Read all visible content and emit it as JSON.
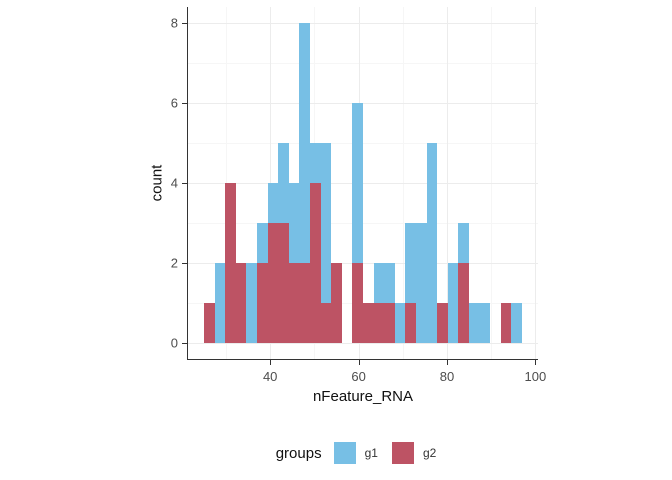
{
  "chart_data": {
    "type": "histogram",
    "title": "",
    "xlabel": "nFeature_RNA",
    "ylabel": "count",
    "bin_start": 25,
    "binwidth": 2.4,
    "n_bins": 30,
    "x_domain": [
      21.4,
      100.6
    ],
    "y_domain": [
      -0.4,
      8.4
    ],
    "x_major_ticks": [
      40,
      60,
      80,
      100
    ],
    "x_minor_gridlines": [
      30,
      50,
      70,
      90
    ],
    "y_major_ticks": [
      0,
      2,
      4,
      6,
      8
    ],
    "y_minor_gridlines": [
      1,
      3,
      5,
      7
    ],
    "grid": true,
    "colors": {
      "g1": "#77BFE5",
      "g2": "#BD5364",
      "axis": "#333333",
      "tick_text": "#4d4d4d",
      "grid_major": "#ececec",
      "grid_minor": "#f6f6f6"
    },
    "series": [
      {
        "name": "g1",
        "color": "#77BFE5",
        "counts": [
          0,
          2,
          0,
          0,
          2,
          3,
          4,
          5,
          4,
          8,
          5,
          5,
          0,
          0,
          6,
          0,
          2,
          2,
          1,
          3,
          3,
          5,
          0,
          2,
          3,
          1,
          1,
          0,
          0,
          1
        ]
      },
      {
        "name": "g2",
        "color": "#BD5364",
        "counts": [
          1,
          0,
          4,
          2,
          0,
          2,
          3,
          3,
          2,
          2,
          4,
          1,
          2,
          0,
          2,
          1,
          1,
          1,
          0,
          1,
          0,
          0,
          1,
          0,
          2,
          0,
          0,
          0,
          1,
          0
        ]
      }
    ],
    "legend": {
      "title": "groups",
      "position": "bottom",
      "entries": [
        {
          "label": "g1",
          "color": "#77BFE5"
        },
        {
          "label": "g2",
          "color": "#BD5364"
        }
      ]
    }
  }
}
